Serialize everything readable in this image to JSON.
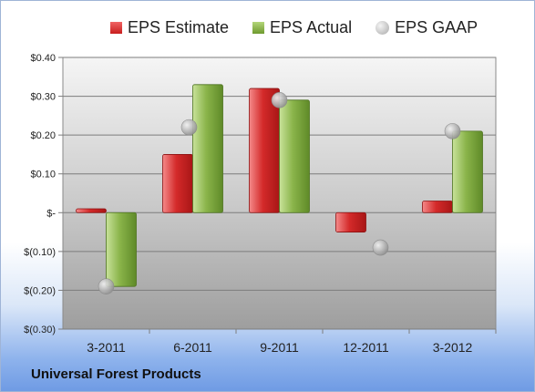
{
  "chart_data": {
    "type": "bar",
    "categories": [
      "3-2011",
      "6-2011",
      "9-2011",
      "12-2011",
      "3-2012"
    ],
    "series": [
      {
        "name": "EPS Estimate",
        "type": "bar",
        "values": [
          0.01,
          0.15,
          0.32,
          -0.05,
          0.03
        ],
        "color": "#d42a2a"
      },
      {
        "name": "EPS Actual",
        "type": "bar",
        "values": [
          -0.19,
          0.33,
          0.29,
          null,
          0.21
        ],
        "color": "#8ab44a"
      },
      {
        "name": "EPS GAAP",
        "type": "scatter",
        "values": [
          -0.19,
          0.22,
          0.29,
          -0.09,
          0.21
        ],
        "color": "#b8b8b8"
      }
    ],
    "ylim": [
      -0.3,
      0.4
    ],
    "yticks": [
      -0.3,
      -0.2,
      -0.1,
      0.0,
      0.1,
      0.2,
      0.3,
      0.4
    ],
    "ytick_labels": [
      "$(0.30)",
      "$(0.20)",
      "$(0.10)",
      "$-",
      "$0.10",
      "$0.20",
      "$0.30",
      "$0.40"
    ],
    "legend_placement": "top",
    "grid": true
  },
  "footer": {
    "company": "Universal Forest Products"
  }
}
